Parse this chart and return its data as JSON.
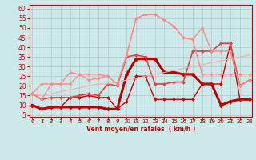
{
  "x": [
    0,
    1,
    2,
    3,
    4,
    5,
    6,
    7,
    8,
    9,
    10,
    11,
    12,
    13,
    14,
    15,
    16,
    17,
    18,
    19,
    20,
    21,
    22,
    23
  ],
  "series": [
    {
      "name": "thick_dark",
      "color": "#bb0000",
      "linewidth": 2.2,
      "marker": "D",
      "markersize": 2.5,
      "values": [
        10,
        8,
        9,
        9,
        9,
        9,
        9,
        9,
        8,
        8,
        26,
        34,
        34,
        34,
        27,
        27,
        26,
        26,
        21,
        21,
        10,
        12,
        13,
        13
      ]
    },
    {
      "name": "thin_dark",
      "color": "#cc0000",
      "linewidth": 1.0,
      "marker": "D",
      "markersize": 2.0,
      "values": [
        10,
        8,
        9,
        9,
        14,
        14,
        15,
        14,
        14,
        8,
        12,
        25,
        25,
        13,
        13,
        13,
        13,
        13,
        21,
        21,
        21,
        42,
        13,
        13
      ]
    },
    {
      "name": "medium_red",
      "color": "#dd4444",
      "linewidth": 1.2,
      "marker": "D",
      "markersize": 2.0,
      "values": [
        16,
        13,
        14,
        14,
        14,
        15,
        16,
        15,
        21,
        20,
        35,
        36,
        35,
        21,
        21,
        22,
        22,
        38,
        38,
        38,
        42,
        42,
        20,
        23
      ]
    },
    {
      "name": "light_pink_high",
      "color": "#ff8888",
      "linewidth": 1.0,
      "marker": "D",
      "markersize": 1.8,
      "values": [
        16,
        13,
        21,
        21,
        21,
        26,
        23,
        24,
        25,
        21,
        36,
        55,
        57,
        57,
        54,
        51,
        45,
        44,
        50,
        38,
        38,
        38,
        20,
        23
      ]
    },
    {
      "name": "light_pink_mid",
      "color": "#ff8888",
      "linewidth": 1.0,
      "marker": "D",
      "markersize": 1.8,
      "values": [
        16,
        21,
        21,
        21,
        27,
        26,
        26,
        26,
        25,
        21,
        36,
        55,
        57,
        57,
        54,
        51,
        45,
        44,
        26,
        26,
        26,
        26,
        26,
        26
      ]
    },
    {
      "name": "diagonal",
      "color": "#ffaaaa",
      "linewidth": 0.8,
      "marker": "none",
      "markersize": 0,
      "values": [
        16,
        15,
        16,
        17,
        18,
        19,
        20,
        21,
        21,
        22,
        23,
        24,
        25,
        26,
        27,
        28,
        29,
        30,
        31,
        32,
        33,
        34,
        35,
        36
      ]
    }
  ],
  "wind_row": [
    "↗",
    "↗",
    "↗",
    "↗",
    "↗",
    "→",
    "↗",
    "↗",
    "↗",
    "↗",
    "↑",
    "↑",
    "↑",
    "↖",
    "↑",
    "↑",
    "↗",
    "↑",
    "↗",
    "↖",
    "→",
    "↗",
    "↗",
    "↗"
  ],
  "xlim": [
    -0.3,
    23.3
  ],
  "ylim": [
    4,
    62
  ],
  "yticks": [
    5,
    10,
    15,
    20,
    25,
    30,
    35,
    40,
    45,
    50,
    55,
    60
  ],
  "xticks": [
    0,
    1,
    2,
    3,
    4,
    5,
    6,
    7,
    8,
    9,
    10,
    11,
    12,
    13,
    14,
    15,
    16,
    17,
    18,
    19,
    20,
    21,
    22,
    23
  ],
  "xlabel": "Vent moyen/en rafales  ( km/h )",
  "bg_color": "#cce8e8",
  "grid_color": "#aacccc",
  "axis_color": "#cc0000",
  "label_color": "#cc0000"
}
